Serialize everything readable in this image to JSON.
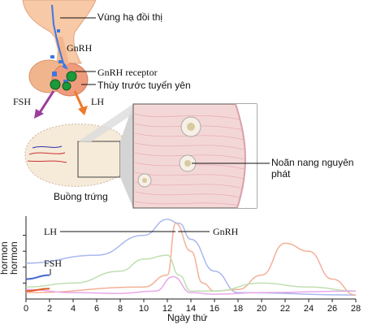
{
  "labels": {
    "hypothalamus": "Vùng hạ đồi thị",
    "gnrh": "GnRH",
    "gnrh_receptor": "GnRH receptor",
    "anterior_pituitary": "Thùy trước tuyến yên",
    "fsh": "FSH",
    "lh": "LH",
    "ovary": "Buồng trứng",
    "follicle_line1": "Noãn nang nguyên",
    "follicle_line2": "phát"
  },
  "colors": {
    "GnRH": "#f0a882",
    "FSH": "#9b3d9b",
    "LH": "#f07828",
    "receptor": "#1a9a3a"
  },
  "chart_data": {
    "type": "line",
    "xlabel": "Ngày thứ",
    "ylabel": "hormon",
    "x_ticks": [
      0,
      2,
      4,
      6,
      8,
      10,
      12,
      14,
      16,
      18,
      20,
      22,
      24,
      26,
      28
    ],
    "xlim": [
      0,
      28
    ],
    "annotations": [
      "LH",
      "GnRH",
      "FSH"
    ],
    "series": [
      {
        "color": "#aab8ee",
        "x": [
          0,
          6,
          10,
          12,
          13,
          14,
          16,
          18,
          28
        ],
        "y": [
          0.45,
          0.55,
          0.8,
          1.0,
          0.95,
          0.75,
          0.35,
          0.08,
          0.05
        ]
      },
      {
        "color": "#f4b098",
        "x": [
          0,
          10,
          12,
          12.7,
          14,
          15,
          16,
          18,
          20,
          22,
          24,
          26,
          28
        ],
        "y": [
          0.08,
          0.15,
          0.3,
          0.95,
          0.6,
          0.2,
          0.1,
          0.12,
          0.3,
          0.7,
          0.6,
          0.25,
          0.05
        ]
      },
      {
        "color": "#bfe0b0",
        "x": [
          0,
          4,
          8,
          10,
          12,
          13,
          14,
          16,
          20,
          24,
          28
        ],
        "y": [
          0.15,
          0.2,
          0.35,
          0.5,
          0.55,
          0.3,
          0.1,
          0.1,
          0.2,
          0.15,
          0.1
        ]
      },
      {
        "color": "#e8a8e8",
        "x": [
          0,
          4,
          8,
          11,
          12.5,
          14,
          16,
          20,
          28
        ],
        "y": [
          0.12,
          0.08,
          0.07,
          0.1,
          0.28,
          0.08,
          0.06,
          0.08,
          0.1
        ]
      },
      {
        "color": "#4466cc",
        "x": [
          0,
          2
        ],
        "y": [
          0.25,
          0.3
        ]
      },
      {
        "color": "#e05a20",
        "x": [
          0,
          2
        ],
        "y": [
          0.1,
          0.13
        ]
      }
    ]
  }
}
